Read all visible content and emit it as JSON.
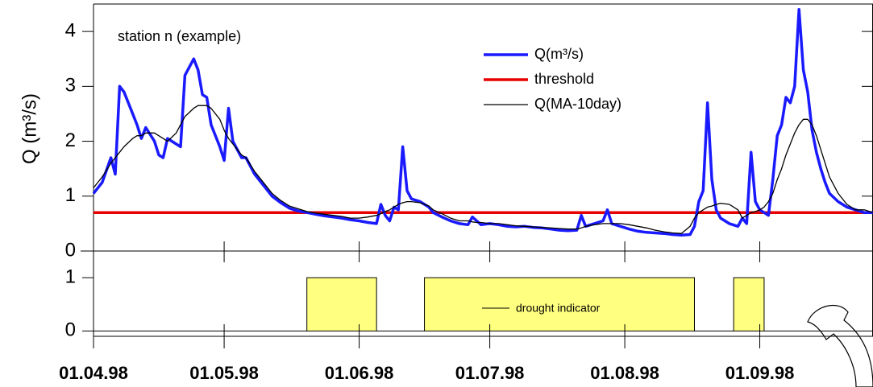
{
  "chart_data": [
    {
      "type": "line",
      "annotation": "station n (example)",
      "y_label": "Q (m³/s)",
      "xlim": [
        "01.04.98",
        "27.09.98"
      ],
      "ylim": [
        0,
        4.5
      ],
      "yticks": [
        0,
        1,
        2,
        3,
        4
      ],
      "x": [
        "01.04.98",
        "03.04.98",
        "05.04.98",
        "06.04.98",
        "07.04.98",
        "08.04.98",
        "10.04.98",
        "11.04.98",
        "12.04.98",
        "13.04.98",
        "15.04.98",
        "16.04.98",
        "17.04.98",
        "18.04.98",
        "20.04.98",
        "21.04.98",
        "22.04.98",
        "24.04.98",
        "25.04.98",
        "26.04.98",
        "27.04.98",
        "28.04.98",
        "30.04.98",
        "01.05.98",
        "02.05.98",
        "03.05.98",
        "04.05.98",
        "05.05.98",
        "06.05.98",
        "08.05.98",
        "10.05.98",
        "12.05.98",
        "14.05.98",
        "16.05.98",
        "18.05.98",
        "20.05.98",
        "22.05.98",
        "24.05.98",
        "26.05.98",
        "28.05.98",
        "30.05.98",
        "01.06.98",
        "03.06.98",
        "05.06.98",
        "06.06.98",
        "07.06.98",
        "08.06.98",
        "09.06.98",
        "10.06.98",
        "11.06.98",
        "12.06.98",
        "13.06.98",
        "15.06.98",
        "17.06.98",
        "18.06.98",
        "20.06.98",
        "22.06.98",
        "24.06.98",
        "26.06.98",
        "27.06.98",
        "28.06.98",
        "29.06.98",
        "01.07.98",
        "03.07.98",
        "05.07.98",
        "07.07.98",
        "09.07.98",
        "11.07.98",
        "13.07.98",
        "15.07.98",
        "17.07.98",
        "19.07.98",
        "21.07.98",
        "22.07.98",
        "23.07.98",
        "25.07.98",
        "27.07.98",
        "28.07.98",
        "29.07.98",
        "31.07.98",
        "02.08.98",
        "04.08.98",
        "06.08.98",
        "08.08.98",
        "10.08.98",
        "12.08.98",
        "14.08.98",
        "16.08.98",
        "17.08.98",
        "18.08.98",
        "19.08.98",
        "20.08.98",
        "21.08.98",
        "22.08.98",
        "23.08.98",
        "25.08.98",
        "27.08.98",
        "28.08.98",
        "29.08.98",
        "30.08.98",
        "31.08.98",
        "01.09.98",
        "02.09.98",
        "03.09.98",
        "04.09.98",
        "05.09.98",
        "06.09.98",
        "07.09.98",
        "08.09.98",
        "09.09.98",
        "10.09.98",
        "11.09.98",
        "12.09.98",
        "13.09.98",
        "14.09.98",
        "15.09.98",
        "16.09.98",
        "17.09.98",
        "19.09.98",
        "21.09.98",
        "23.09.98",
        "25.09.98",
        "27.09.98"
      ],
      "series": [
        {
          "name": "Q(m³/s)",
          "color": "#1a1aff",
          "width": 3.5,
          "values": [
            1.05,
            1.25,
            1.7,
            1.4,
            3.0,
            2.9,
            2.5,
            2.3,
            2.05,
            2.25,
            2.0,
            1.75,
            1.7,
            2.05,
            1.95,
            1.9,
            3.2,
            3.5,
            3.3,
            2.85,
            2.8,
            2.3,
            1.9,
            1.65,
            2.6,
            2.0,
            1.85,
            1.7,
            1.7,
            1.4,
            1.2,
            1.0,
            0.88,
            0.78,
            0.73,
            0.7,
            0.67,
            0.64,
            0.62,
            0.6,
            0.57,
            0.55,
            0.52,
            0.5,
            0.85,
            0.65,
            0.55,
            0.8,
            0.75,
            1.9,
            1.1,
            0.95,
            0.9,
            0.8,
            0.7,
            0.62,
            0.55,
            0.5,
            0.48,
            0.62,
            0.55,
            0.48,
            0.5,
            0.48,
            0.45,
            0.44,
            0.45,
            0.43,
            0.42,
            0.4,
            0.38,
            0.37,
            0.38,
            0.65,
            0.45,
            0.5,
            0.55,
            0.75,
            0.5,
            0.45,
            0.4,
            0.36,
            0.34,
            0.33,
            0.32,
            0.3,
            0.29,
            0.3,
            0.45,
            0.9,
            1.1,
            2.7,
            1.3,
            0.75,
            0.6,
            0.5,
            0.45,
            0.6,
            0.5,
            1.8,
            0.9,
            0.75,
            0.7,
            0.65,
            1.3,
            2.1,
            2.3,
            2.8,
            2.7,
            3.0,
            4.4,
            3.3,
            2.9,
            2.2,
            1.8,
            1.5,
            1.25,
            1.05,
            0.9,
            0.8,
            0.75,
            0.7,
            0.7
          ]
        },
        {
          "name": "Q(MA-10day)",
          "color": "#000000",
          "width": 1.3,
          "values": [
            1.15,
            1.35,
            1.6,
            1.7,
            1.8,
            1.9,
            2.05,
            2.1,
            2.1,
            2.15,
            2.15,
            2.1,
            2.05,
            2.0,
            2.15,
            2.3,
            2.45,
            2.6,
            2.65,
            2.65,
            2.65,
            2.6,
            2.4,
            2.2,
            2.05,
            1.95,
            1.85,
            1.75,
            1.7,
            1.45,
            1.25,
            1.05,
            0.92,
            0.82,
            0.77,
            0.72,
            0.69,
            0.67,
            0.65,
            0.63,
            0.6,
            0.6,
            0.62,
            0.65,
            0.68,
            0.72,
            0.75,
            0.8,
            0.85,
            0.88,
            0.9,
            0.9,
            0.88,
            0.82,
            0.75,
            0.68,
            0.6,
            0.55,
            0.55,
            0.53,
            0.52,
            0.52,
            0.5,
            0.5,
            0.48,
            0.46,
            0.45,
            0.44,
            0.43,
            0.42,
            0.41,
            0.4,
            0.4,
            0.42,
            0.45,
            0.48,
            0.5,
            0.5,
            0.5,
            0.5,
            0.48,
            0.45,
            0.42,
            0.38,
            0.35,
            0.33,
            0.32,
            0.45,
            0.6,
            0.7,
            0.75,
            0.8,
            0.82,
            0.85,
            0.87,
            0.85,
            0.75,
            0.6,
            0.65,
            0.7,
            0.72,
            0.75,
            0.8,
            0.9,
            1.05,
            1.3,
            1.5,
            1.75,
            1.95,
            2.15,
            2.3,
            2.4,
            2.4,
            2.3,
            2.1,
            1.85,
            1.6,
            1.35,
            1.05,
            0.85,
            0.75,
            0.75,
            0.7
          ]
        }
      ],
      "threshold": {
        "name": "threshold",
        "value": 0.7,
        "color": "#e60000"
      }
    },
    {
      "type": "step",
      "xlim": [
        "01.04.98",
        "27.09.98"
      ],
      "ylim": [
        -0.1,
        1.5
      ],
      "yticks": [
        0,
        1
      ],
      "xticks": [
        "01.04.98",
        "01.05.98",
        "01.06.98",
        "01.07.98",
        "01.08.98",
        "01.09.98"
      ],
      "x": [
        "01.04.98",
        "20.05.98",
        "05.06.98",
        "16.06.98",
        "17.08.98",
        "26.08.98",
        "02.09.98"
      ],
      "series": [
        {
          "name": "drought indicator",
          "color": "#ffff80",
          "values": [
            0,
            1,
            0,
            1,
            0,
            1,
            0
          ]
        }
      ]
    }
  ]
}
